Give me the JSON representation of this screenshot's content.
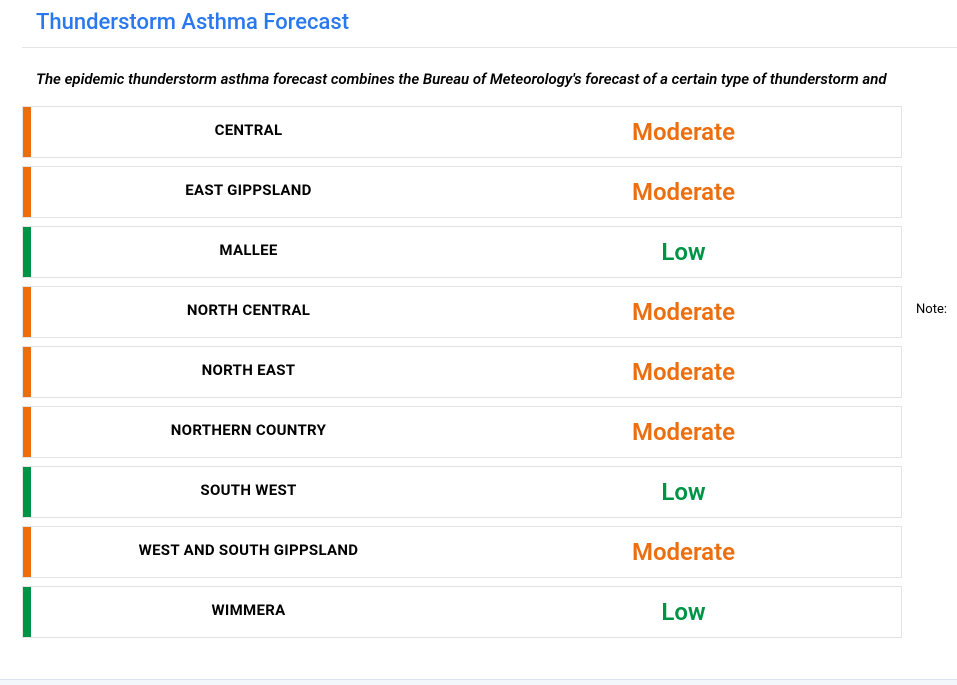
{
  "header": {
    "title": "Thunderstorm Asthma Forecast"
  },
  "intro": "The epidemic thunderstorm asthma forecast combines the Bureau of Meteorology's forecast of a certain type of thunderstorm and",
  "side_note": "Note:",
  "colors": {
    "moderate": "#ed6e0f",
    "low": "#009245",
    "title": "#2978f0",
    "row_border": "#e3e3e3",
    "background": "#ffffff"
  },
  "risk_labels": {
    "moderate": "Moderate",
    "low": "Low"
  },
  "rows": [
    {
      "region": "CENTRAL",
      "risk": "moderate"
    },
    {
      "region": "EAST GIPPSLAND",
      "risk": "moderate"
    },
    {
      "region": "MALLEE",
      "risk": "low"
    },
    {
      "region": "NORTH CENTRAL",
      "risk": "moderate"
    },
    {
      "region": "NORTH EAST",
      "risk": "moderate"
    },
    {
      "region": "NORTHERN COUNTRY",
      "risk": "moderate"
    },
    {
      "region": "SOUTH WEST",
      "risk": "low"
    },
    {
      "region": "WEST AND SOUTH GIPPSLAND",
      "risk": "moderate"
    },
    {
      "region": "WIMMERA",
      "risk": "low"
    }
  ]
}
